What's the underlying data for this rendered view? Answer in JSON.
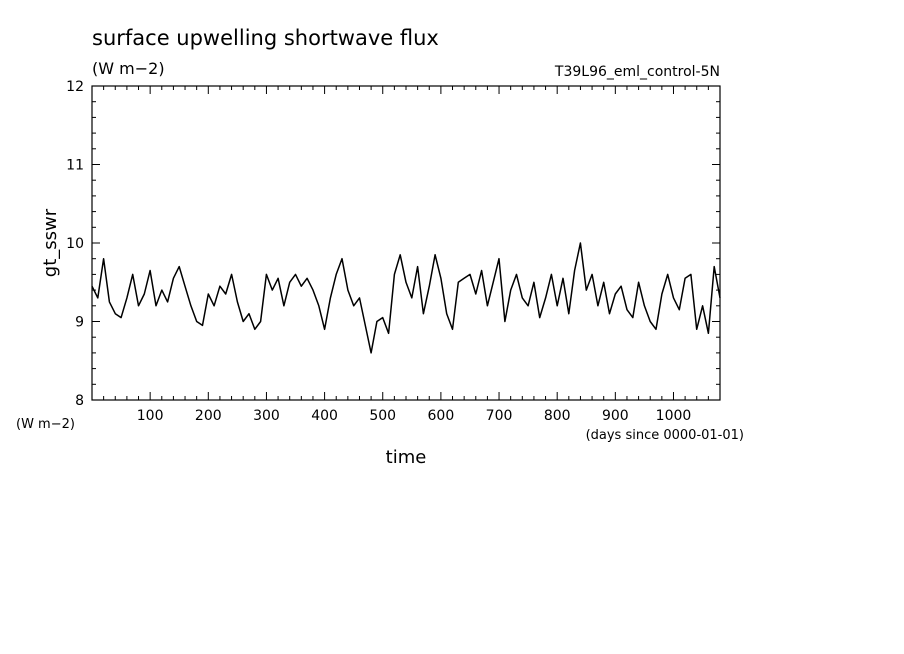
{
  "chart_data": {
    "type": "line",
    "title": "surface upwelling shortwave flux",
    "subtitle": "(W m−2)",
    "experiment": "T39L96_eml_control-5N",
    "xlabel": "time",
    "xunits": "(days since 0000-01-01)",
    "ylabel": "gt_sswr",
    "yunits": "(W m−2)",
    "xlim": [
      0,
      1080
    ],
    "ylim": [
      8,
      12
    ],
    "x_ticks": [
      100,
      200,
      300,
      400,
      500,
      600,
      700,
      800,
      900,
      1000
    ],
    "y_ticks": [
      8,
      9,
      10,
      11,
      12
    ],
    "grid": false,
    "line_color": "#000000",
    "series": [
      {
        "x": [
          0,
          10,
          20,
          30,
          40,
          50,
          60,
          70,
          80,
          90,
          100,
          110,
          120,
          130,
          140,
          150,
          160,
          170,
          180,
          190,
          200,
          210,
          220,
          230,
          240,
          250,
          260,
          270,
          280,
          290,
          300,
          310,
          320,
          330,
          340,
          350,
          360,
          370,
          380,
          390,
          400,
          410,
          420,
          430,
          440,
          450,
          460,
          470,
          480,
          490,
          500,
          510,
          520,
          530,
          540,
          550,
          560,
          570,
          580,
          590,
          600,
          610,
          620,
          630,
          640,
          650,
          660,
          670,
          680,
          690,
          700,
          710,
          720,
          730,
          740,
          750,
          760,
          770,
          780,
          790,
          800,
          810,
          820,
          830,
          840,
          850,
          860,
          870,
          880,
          890,
          900,
          910,
          920,
          930,
          940,
          950,
          960,
          970,
          980,
          990,
          1000,
          1010,
          1020,
          1030,
          1040,
          1050,
          1060,
          1070,
          1080
        ],
        "values": [
          9.45,
          9.3,
          9.8,
          9.25,
          9.1,
          9.05,
          9.3,
          9.6,
          9.2,
          9.35,
          9.65,
          9.2,
          9.4,
          9.25,
          9.55,
          9.7,
          9.45,
          9.2,
          9.0,
          8.95,
          9.35,
          9.2,
          9.45,
          9.35,
          9.6,
          9.25,
          9.0,
          9.1,
          8.9,
          9.0,
          9.6,
          9.4,
          9.55,
          9.2,
          9.5,
          9.6,
          9.45,
          9.55,
          9.4,
          9.2,
          8.9,
          9.3,
          9.6,
          9.8,
          9.4,
          9.2,
          9.3,
          8.95,
          8.6,
          9.0,
          9.05,
          8.85,
          9.6,
          9.85,
          9.5,
          9.3,
          9.7,
          9.1,
          9.45,
          9.85,
          9.55,
          9.1,
          8.9,
          9.5,
          9.55,
          9.6,
          9.35,
          9.65,
          9.2,
          9.5,
          9.8,
          9.0,
          9.4,
          9.6,
          9.3,
          9.2,
          9.5,
          9.05,
          9.3,
          9.6,
          9.2,
          9.55,
          9.1,
          9.65,
          10.0,
          9.4,
          9.6,
          9.2,
          9.5,
          9.1,
          9.35,
          9.45,
          9.15,
          9.05,
          9.5,
          9.2,
          9.0,
          8.9,
          9.35,
          9.6,
          9.3,
          9.15,
          9.55,
          9.6,
          8.9,
          9.2,
          8.85,
          9.7,
          9.3
        ]
      }
    ]
  }
}
